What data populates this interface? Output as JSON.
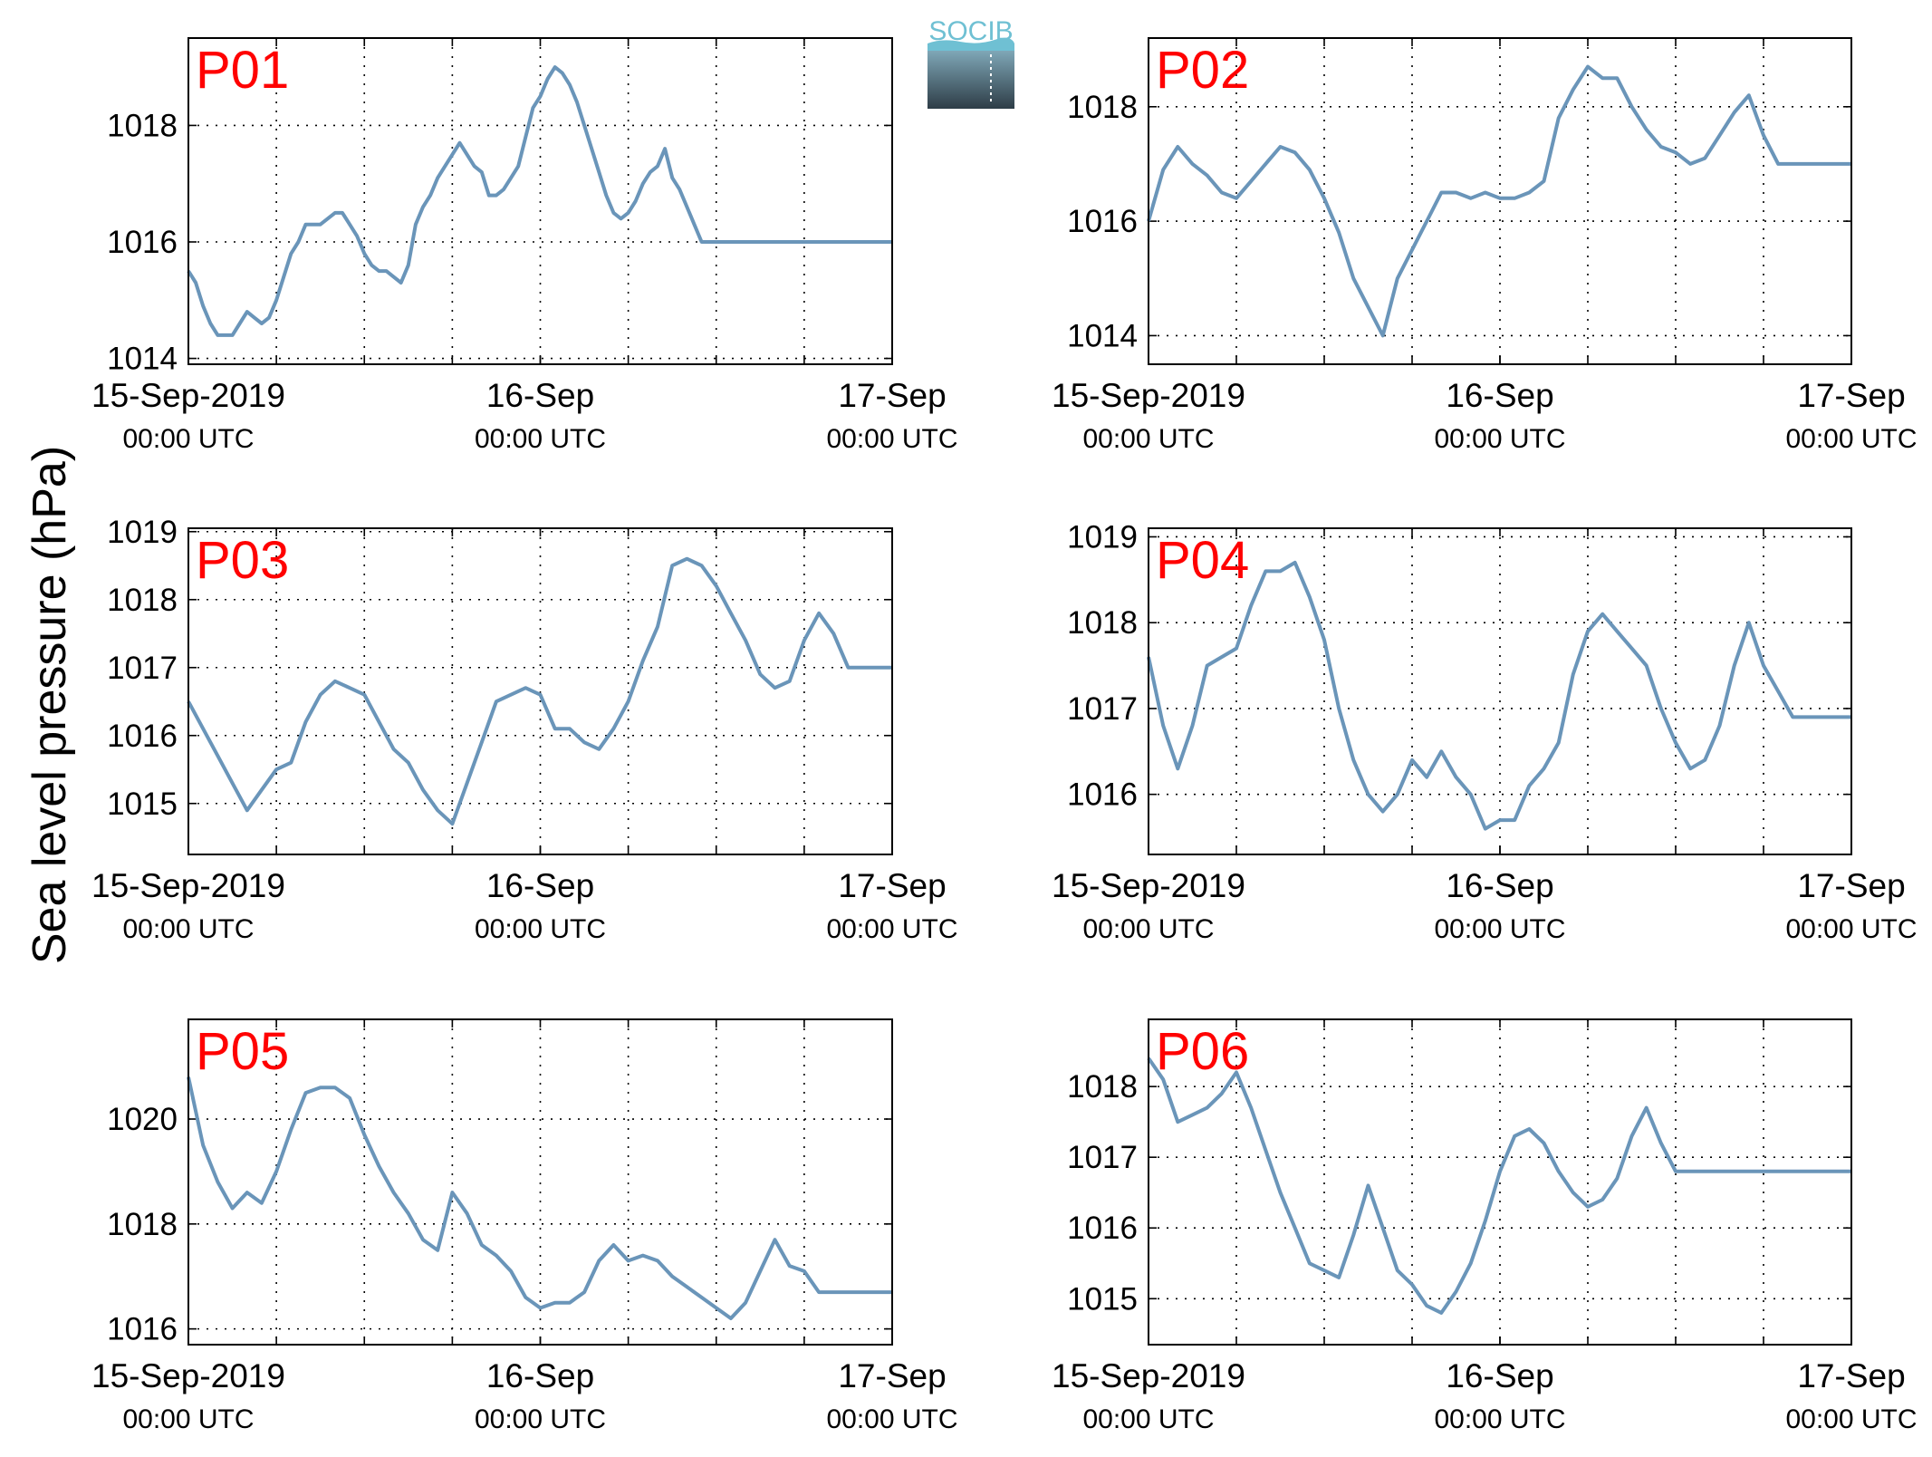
{
  "figure": {
    "ylabel": "Sea level pressure (hPa)",
    "logo_text": "SOCIB",
    "line_color": "#6a95b9",
    "panel_label_color": "#ff0000"
  },
  "chart_data": [
    {
      "type": "line",
      "title": "P01",
      "x_unit": "hours since 15-Sep-2019 00:00 UTC",
      "xlim": [
        0,
        48
      ],
      "xticks": [
        0,
        24,
        48
      ],
      "xticklabels": [
        [
          "15-Sep-2019",
          "00:00 UTC"
        ],
        [
          "16-Sep",
          "00:00 UTC"
        ],
        [
          "17-Sep",
          "00:00 UTC"
        ]
      ],
      "ylim": [
        1013.9,
        1019.5
      ],
      "yticks": [
        1014,
        1016,
        1018
      ],
      "grid": true,
      "series": [
        {
          "x": [
            0,
            0.5,
            1,
            1.5,
            2,
            2.5,
            3,
            3.5,
            4,
            4.5,
            5,
            5.5,
            6,
            6.5,
            7,
            7.5,
            8,
            8.5,
            9,
            9.5,
            10,
            10.5,
            11,
            11.5,
            12,
            12.5,
            13,
            13.5,
            14,
            14.5,
            15,
            15.5,
            16,
            16.5,
            17,
            17.5,
            18,
            18.5,
            19,
            19.5,
            20,
            20.5,
            21,
            21.5,
            22,
            22.5,
            23,
            23.5,
            24,
            24.5,
            25,
            25.5,
            26,
            26.5,
            27,
            27.5,
            28,
            28.5,
            29,
            29.5,
            30,
            30.5,
            31,
            31.5,
            32,
            32.5,
            33,
            33.5,
            34,
            34.5,
            35,
            35.5,
            36,
            36.5,
            37,
            37.5,
            38,
            38.5,
            39,
            39.5,
            40,
            40.5,
            41,
            41.5,
            42,
            42.5,
            43,
            43.5,
            44,
            44.5,
            45,
            45.5,
            46,
            46.5,
            47,
            47.5,
            48
          ],
          "values": [
            1015.5,
            1015.3,
            1014.9,
            1014.6,
            1014.4,
            1014.4,
            1014.4,
            1014.6,
            1014.8,
            1014.7,
            1014.6,
            1014.7,
            1015.0,
            1015.4,
            1015.8,
            1016.0,
            1016.3,
            1016.3,
            1016.3,
            1016.4,
            1016.5,
            1016.5,
            1016.3,
            1016.1,
            1015.8,
            1015.6,
            1015.5,
            1015.5,
            1015.4,
            1015.3,
            1015.6,
            1016.3,
            1016.6,
            1016.8,
            1017.1,
            1017.3,
            1017.5,
            1017.7,
            1017.5,
            1017.3,
            1017.2,
            1016.8,
            1016.8,
            1016.9,
            1017.1,
            1017.3,
            1017.8,
            1018.3,
            1018.5,
            1018.8,
            1019.0,
            1018.9,
            1018.7,
            1018.4,
            1018.0,
            1017.6,
            1017.2,
            1016.8,
            1016.5,
            1016.4,
            1016.5,
            1016.7,
            1017.0,
            1017.2,
            1017.3,
            1017.6,
            1017.1,
            1016.9,
            1016.6,
            1016.3,
            1016.0,
            1016.0,
            1016.0,
            1016.0,
            1016.0,
            1016.0,
            1016.0,
            1016.0,
            1016.0,
            1016.0,
            1016.0,
            1016.0,
            1016.0,
            1016.0,
            1016.0,
            1016.0,
            1016.0,
            1016.0,
            1016.0,
            1016.0,
            1016.0,
            1016.0,
            1016.0,
            1016.0,
            1016.0,
            1016.0,
            1016.0
          ]
        }
      ]
    },
    {
      "type": "line",
      "title": "P02",
      "x_unit": "hours since 15-Sep-2019 00:00 UTC",
      "xlim": [
        0,
        48
      ],
      "xticks": [
        0,
        24,
        48
      ],
      "xticklabels": [
        [
          "15-Sep-2019",
          "00:00 UTC"
        ],
        [
          "16-Sep",
          "00:00 UTC"
        ],
        [
          "17-Sep",
          "00:00 UTC"
        ]
      ],
      "ylim": [
        1013.5,
        1019.2
      ],
      "yticks": [
        1014,
        1016,
        1018
      ],
      "grid": true,
      "series": [
        {
          "x": [
            0,
            1,
            2,
            3,
            4,
            5,
            6,
            7,
            8,
            9,
            10,
            11,
            12,
            13,
            14,
            15,
            16,
            17,
            18,
            19,
            20,
            21,
            22,
            23,
            24,
            25,
            26,
            27,
            28,
            29,
            30,
            31,
            32,
            33,
            34,
            35,
            36,
            37,
            38,
            39,
            40,
            41,
            42,
            43,
            44,
            45,
            46,
            47,
            48
          ],
          "values": [
            1016.0,
            1016.9,
            1017.3,
            1017.0,
            1016.8,
            1016.5,
            1016.4,
            1016.7,
            1017.0,
            1017.3,
            1017.2,
            1016.9,
            1016.4,
            1015.8,
            1015.0,
            1014.5,
            1014.0,
            1015.0,
            1015.5,
            1016.0,
            1016.5,
            1016.5,
            1016.4,
            1016.5,
            1016.4,
            1016.4,
            1016.5,
            1016.7,
            1017.8,
            1018.3,
            1018.7,
            1018.5,
            1018.5,
            1018.0,
            1017.6,
            1017.3,
            1017.2,
            1017.0,
            1017.1,
            1017.5,
            1017.9,
            1018.2,
            1017.5,
            1017.0,
            1017.0,
            1017.0,
            1017.0,
            1017.0,
            1017.0
          ]
        }
      ]
    },
    {
      "type": "line",
      "title": "P03",
      "x_unit": "hours since 15-Sep-2019 00:00 UTC",
      "xlim": [
        0,
        48
      ],
      "xticks": [
        0,
        24,
        48
      ],
      "xticklabels": [
        [
          "15-Sep-2019",
          "00:00 UTC"
        ],
        [
          "16-Sep",
          "00:00 UTC"
        ],
        [
          "17-Sep",
          "00:00 UTC"
        ]
      ],
      "ylim": [
        1014.25,
        1019.05
      ],
      "yticks": [
        1015,
        1016,
        1017,
        1018,
        1019
      ],
      "grid": true,
      "series": [
        {
          "x": [
            0,
            1,
            2,
            3,
            4,
            5,
            6,
            7,
            8,
            9,
            10,
            11,
            12,
            13,
            14,
            15,
            16,
            17,
            18,
            19,
            20,
            21,
            22,
            23,
            24,
            25,
            26,
            27,
            28,
            29,
            30,
            31,
            32,
            33,
            34,
            35,
            36,
            37,
            38,
            39,
            40,
            41,
            42,
            43,
            44,
            45,
            46,
            47,
            48
          ],
          "values": [
            1016.5,
            1016.1,
            1015.7,
            1015.3,
            1014.9,
            1015.2,
            1015.5,
            1015.6,
            1016.2,
            1016.6,
            1016.8,
            1016.7,
            1016.6,
            1016.2,
            1015.8,
            1015.6,
            1015.2,
            1014.9,
            1014.7,
            1015.3,
            1015.9,
            1016.5,
            1016.6,
            1016.7,
            1016.6,
            1016.1,
            1016.1,
            1015.9,
            1015.8,
            1016.1,
            1016.5,
            1017.1,
            1017.6,
            1018.5,
            1018.6,
            1018.5,
            1018.2,
            1017.8,
            1017.4,
            1016.9,
            1016.7,
            1016.8,
            1017.4,
            1017.8,
            1017.5,
            1017.0,
            1017.0,
            1017.0,
            1017.0
          ]
        }
      ]
    },
    {
      "type": "line",
      "title": "P04",
      "x_unit": "hours since 15-Sep-2019 00:00 UTC",
      "xlim": [
        0,
        48
      ],
      "xticks": [
        0,
        24,
        48
      ],
      "xticklabels": [
        [
          "15-Sep-2019",
          "00:00 UTC"
        ],
        [
          "16-Sep",
          "00:00 UTC"
        ],
        [
          "17-Sep",
          "00:00 UTC"
        ]
      ],
      "ylim": [
        1015.3,
        1019.1
      ],
      "yticks": [
        1016,
        1017,
        1018,
        1019
      ],
      "grid": true,
      "series": [
        {
          "x": [
            0,
            1,
            2,
            3,
            4,
            5,
            6,
            7,
            8,
            9,
            10,
            11,
            12,
            13,
            14,
            15,
            16,
            17,
            18,
            19,
            20,
            21,
            22,
            23,
            24,
            25,
            26,
            27,
            28,
            29,
            30,
            31,
            32,
            33,
            34,
            35,
            36,
            37,
            38,
            39,
            40,
            41,
            42,
            43,
            44,
            45,
            46,
            47,
            48
          ],
          "values": [
            1017.6,
            1016.8,
            1016.3,
            1016.8,
            1017.5,
            1017.6,
            1017.7,
            1018.2,
            1018.6,
            1018.6,
            1018.7,
            1018.3,
            1017.8,
            1017.0,
            1016.4,
            1016.0,
            1015.8,
            1016.0,
            1016.4,
            1016.2,
            1016.5,
            1016.2,
            1016.0,
            1015.6,
            1015.7,
            1015.7,
            1016.1,
            1016.3,
            1016.6,
            1017.4,
            1017.9,
            1018.1,
            1017.9,
            1017.7,
            1017.5,
            1017.0,
            1016.6,
            1016.3,
            1016.4,
            1016.8,
            1017.5,
            1018.0,
            1017.5,
            1017.2,
            1016.9,
            1016.9,
            1016.9,
            1016.9,
            1016.9
          ]
        }
      ]
    },
    {
      "type": "line",
      "title": "P05",
      "x_unit": "hours since 15-Sep-2019 00:00 UTC",
      "xlim": [
        0,
        48
      ],
      "xticks": [
        0,
        24,
        48
      ],
      "xticklabels": [
        [
          "15-Sep-2019",
          "00:00 UTC"
        ],
        [
          "16-Sep",
          "00:00 UTC"
        ],
        [
          "17-Sep",
          "00:00 UTC"
        ]
      ],
      "ylim": [
        1015.7,
        1021.9
      ],
      "yticks": [
        1016,
        1018,
        1020
      ],
      "grid": true,
      "series": [
        {
          "x": [
            0,
            1,
            2,
            3,
            4,
            5,
            6,
            7,
            8,
            9,
            10,
            11,
            12,
            13,
            14,
            15,
            16,
            17,
            18,
            19,
            20,
            21,
            22,
            23,
            24,
            25,
            26,
            27,
            28,
            29,
            30,
            31,
            32,
            33,
            34,
            35,
            36,
            37,
            38,
            39,
            40,
            41,
            42,
            43,
            44,
            45,
            46,
            47,
            48
          ],
          "values": [
            1020.8,
            1019.5,
            1018.8,
            1018.3,
            1018.6,
            1018.4,
            1019.0,
            1019.8,
            1020.5,
            1020.6,
            1020.6,
            1020.4,
            1019.7,
            1019.1,
            1018.6,
            1018.2,
            1017.7,
            1017.5,
            1018.6,
            1018.2,
            1017.6,
            1017.4,
            1017.1,
            1016.6,
            1016.4,
            1016.5,
            1016.5,
            1016.7,
            1017.3,
            1017.6,
            1017.3,
            1017.4,
            1017.3,
            1017.0,
            1016.8,
            1016.6,
            1016.4,
            1016.2,
            1016.5,
            1017.1,
            1017.7,
            1017.2,
            1017.1,
            1016.7,
            1016.7,
            1016.7,
            1016.7,
            1016.7,
            1016.7
          ]
        }
      ]
    },
    {
      "type": "line",
      "title": "P06",
      "x_unit": "hours since 15-Sep-2019 00:00 UTC",
      "xlim": [
        0,
        48
      ],
      "xticks": [
        0,
        24,
        48
      ],
      "xticklabels": [
        [
          "15-Sep-2019",
          "00:00 UTC"
        ],
        [
          "16-Sep",
          "00:00 UTC"
        ],
        [
          "17-Sep",
          "00:00 UTC"
        ]
      ],
      "ylim": [
        1014.35,
        1018.95
      ],
      "yticks": [
        1015,
        1016,
        1017,
        1018
      ],
      "grid": true,
      "series": [
        {
          "x": [
            0,
            1,
            2,
            3,
            4,
            5,
            6,
            7,
            8,
            9,
            10,
            11,
            12,
            13,
            14,
            15,
            16,
            17,
            18,
            19,
            20,
            21,
            22,
            23,
            24,
            25,
            26,
            27,
            28,
            29,
            30,
            31,
            32,
            33,
            34,
            35,
            36,
            37,
            38,
            39,
            40,
            41,
            42,
            43,
            44,
            45,
            46,
            47,
            48
          ],
          "values": [
            1018.4,
            1018.1,
            1017.5,
            1017.6,
            1017.7,
            1017.9,
            1018.2,
            1017.7,
            1017.1,
            1016.5,
            1016.0,
            1015.5,
            1015.4,
            1015.3,
            1015.9,
            1016.6,
            1016.0,
            1015.4,
            1015.2,
            1014.9,
            1014.8,
            1015.1,
            1015.5,
            1016.1,
            1016.8,
            1017.3,
            1017.4,
            1017.2,
            1016.8,
            1016.5,
            1016.3,
            1016.4,
            1016.7,
            1017.3,
            1017.7,
            1017.2,
            1016.8,
            1016.8,
            1016.8,
            1016.8,
            1016.8,
            1016.8,
            1016.8,
            1016.8,
            1016.8,
            1016.8,
            1016.8,
            1016.8,
            1016.8
          ]
        }
      ]
    }
  ]
}
